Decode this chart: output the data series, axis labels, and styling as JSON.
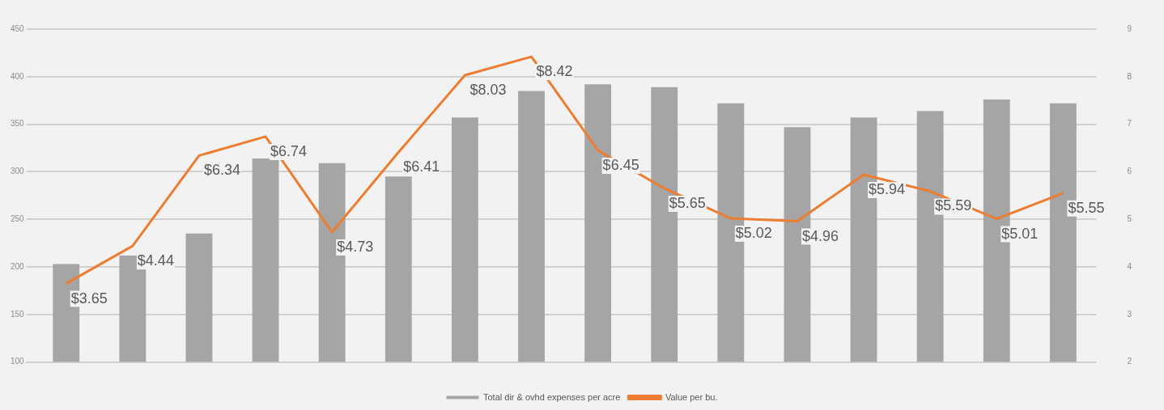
{
  "chart_data": {
    "type": "bar",
    "categories": [
      null,
      null,
      null,
      null,
      null,
      null,
      null,
      null,
      null,
      null,
      null,
      null,
      null,
      null,
      null,
      null
    ],
    "series": [
      {
        "name": "Total dir & ovhd expenses per acre",
        "color": "#a5a5a5",
        "values": [
          203,
          212,
          235,
          314,
          309,
          295,
          357,
          385,
          392,
          389,
          372,
          347,
          357,
          364,
          376,
          372
        ]
      },
      {
        "name": "Value per bu.",
        "type": "line",
        "axis": "y2",
        "color": "#ed7d31",
        "values": [
          3.65,
          4.44,
          6.34,
          6.74,
          4.73,
          6.41,
          8.03,
          8.42,
          6.45,
          5.65,
          5.02,
          4.96,
          5.94,
          5.59,
          5.01,
          5.55
        ],
        "value_labels": [
          "$3.65",
          "$4.44",
          "$6.34",
          "$6.74",
          "$4.73",
          "$6.41",
          "$8.03",
          "$8.42",
          "$6.45",
          "$5.65",
          "$5.02",
          "$4.96",
          "$5.94",
          "$5.59",
          "$5.01",
          "$5.55"
        ]
      }
    ],
    "ylim": [
      100,
      450
    ],
    "yticks": [
      100,
      150,
      200,
      250,
      300,
      350,
      400,
      450
    ],
    "y2lim": [
      2,
      9
    ],
    "y2ticks": [
      2,
      3,
      4,
      5,
      6,
      7,
      8,
      9
    ],
    "grid": "y",
    "legend": "bottom",
    "marker": "none",
    "line_style": "solid"
  }
}
